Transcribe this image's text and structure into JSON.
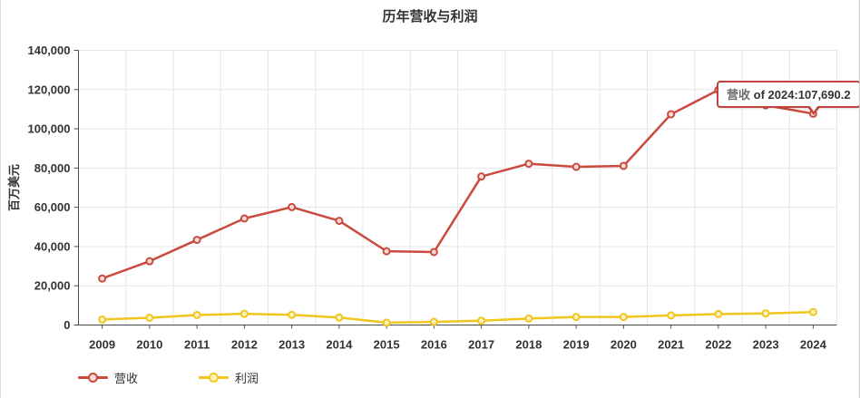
{
  "chart_data": {
    "type": "line",
    "title": "历年营收与利润",
    "ylabel": "百万美元",
    "xlabel": "",
    "ylim": [
      0,
      140000
    ],
    "yticks": [
      0,
      20000,
      40000,
      60000,
      80000,
      100000,
      120000,
      140000
    ],
    "grid": true,
    "legend_position": "bottom",
    "categories": [
      "2009",
      "2010",
      "2011",
      "2012",
      "2013",
      "2014",
      "2015",
      "2016",
      "2017",
      "2018",
      "2019",
      "2020",
      "2021",
      "2022",
      "2023",
      "2024"
    ],
    "series": [
      {
        "name": "营收",
        "color": "#ca4a3d",
        "marker_fill": "#f7ddd9",
        "values": [
          23700,
          32500,
          43400,
          54300,
          60100,
          53100,
          37600,
          37200,
          75700,
          82200,
          80600,
          81100,
          107400,
          119800,
          112000,
          107690.2
        ]
      },
      {
        "name": "利润",
        "color": "#f2c51d",
        "marker_fill": "#fcf3c5",
        "values": [
          2800,
          3700,
          5100,
          5700,
          5200,
          3800,
          1200,
          1600,
          2200,
          3300,
          4100,
          4100,
          4900,
          5600,
          5900,
          6600
        ]
      }
    ],
    "tooltip": {
      "series": "营收",
      "rest": " of 2024:107,690.2"
    }
  },
  "styles": {
    "axis_color": "#4a4a4a",
    "grid_color": "#e6e6e6",
    "tooltip_border": "#c2443a"
  }
}
